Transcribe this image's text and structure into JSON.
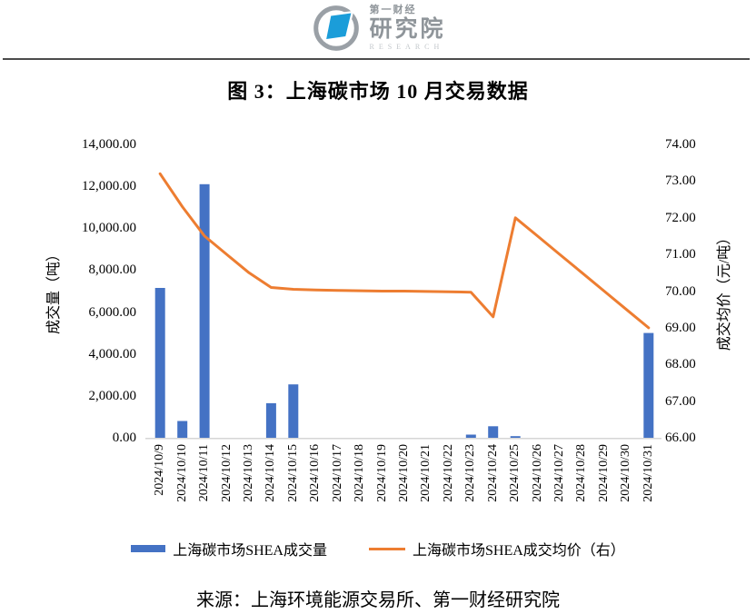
{
  "logo": {
    "brand_small": "第一财经",
    "brand_large": "研究院",
    "brand_sub": "RESEARCH",
    "mark_blue": "#1b9dd9",
    "mark_gray": "#9aa0a6"
  },
  "title": "图 3：上海碳市场 10 月交易数据",
  "source": "来源：上海环境能源交易所、第一财经研究院",
  "chart_data": {
    "type": "combo",
    "grid": false,
    "legend_position": "bottom",
    "categories": [
      "2024/10/9",
      "2024/10/10",
      "2024/10/11",
      "2024/10/12",
      "2024/10/13",
      "2024/10/14",
      "2024/10/15",
      "2024/10/16",
      "2024/10/17",
      "2024/10/18",
      "2024/10/19",
      "2024/10/20",
      "2024/10/21",
      "2024/10/22",
      "2024/10/23",
      "2024/10/24",
      "2024/10/25",
      "2024/10/26",
      "2024/10/27",
      "2024/10/28",
      "2024/10/29",
      "2024/10/30",
      "2024/10/31"
    ],
    "series": [
      {
        "name": "上海碳市场SHEA成交量",
        "type": "bar",
        "axis": "left",
        "color": "#4472C4",
        "values": [
          7150,
          800,
          12100,
          0,
          0,
          1650,
          2550,
          0,
          0,
          0,
          0,
          0,
          0,
          0,
          150,
          550,
          80,
          0,
          0,
          0,
          0,
          0,
          5000
        ]
      },
      {
        "name": "上海碳市场SHEA成交均价（右）",
        "type": "line",
        "axis": "right",
        "color": "#ED7D31",
        "values": [
          73.2,
          72.3,
          71.5,
          71.0,
          70.5,
          70.1,
          70.05,
          70.03,
          70.02,
          70.01,
          70.0,
          70.0,
          69.99,
          69.98,
          69.97,
          69.3,
          72.0,
          71.5,
          71.0,
          70.5,
          70.0,
          69.5,
          69.0
        ]
      }
    ],
    "left_axis": {
      "title": "成交量（吨）",
      "min": 0,
      "max": 14000,
      "ticks": [
        "14,000.00",
        "12,000.00",
        "10,000.00",
        "8,000.00",
        "6,000.00",
        "4,000.00",
        "2,000.00",
        "0.00"
      ]
    },
    "right_axis": {
      "title": "成交均价（元/吨）",
      "min": 66,
      "max": 74,
      "ticks": [
        "74.00",
        "73.00",
        "72.00",
        "71.00",
        "70.00",
        "69.00",
        "68.00",
        "67.00",
        "66.00"
      ]
    },
    "axis_line_color": "#d6d6d6"
  }
}
